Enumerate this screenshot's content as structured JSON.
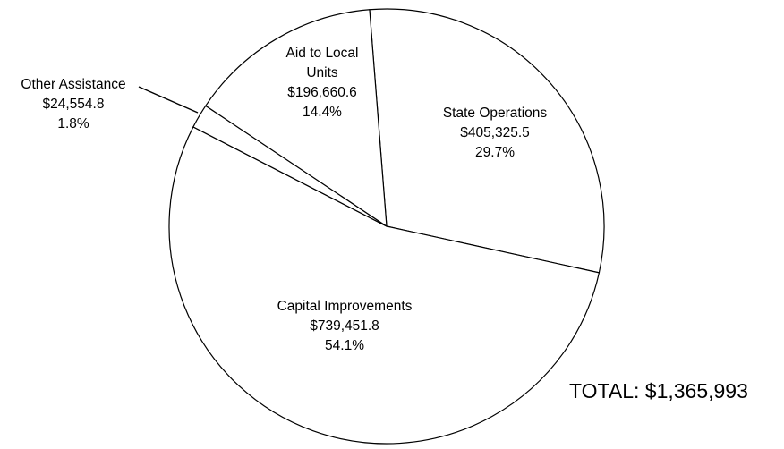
{
  "chart_data": {
    "type": "pie",
    "categories": [
      "State Operations",
      "Capital Improvements",
      "Other Assistance",
      "Aid to Local Units"
    ],
    "values": [
      405325.5,
      739451.8,
      24554.8,
      196660.6
    ],
    "value_labels": [
      "$405,325.5",
      "$739,451.8",
      "$24,554.8",
      "$196,660.6"
    ],
    "percents": [
      29.7,
      54.1,
      1.8,
      14.4
    ],
    "percent_labels": [
      "29.7%",
      "54.1%",
      "1.8%",
      "14.4%"
    ],
    "color": "#ffffff",
    "annotation": "TOTAL: $1,365,993"
  }
}
